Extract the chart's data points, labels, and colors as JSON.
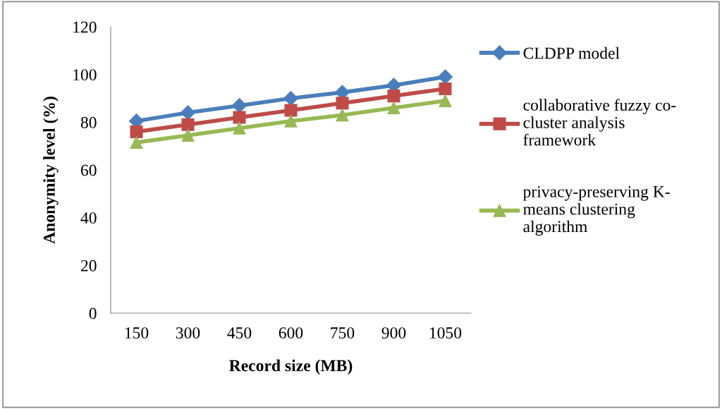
{
  "chart_data": {
    "type": "line",
    "xlabel": "Record size (MB)",
    "ylabel": "Anonymity level (%)",
    "categories": [
      "150",
      "300",
      "450",
      "600",
      "750",
      "900",
      "1050"
    ],
    "series": [
      {
        "name": "CLDPP model",
        "color": "#4a7ebb",
        "marker": "diamond",
        "values": [
          80.5,
          84,
          87,
          90,
          92.5,
          95.5,
          99
        ]
      },
      {
        "name": "collaborative fuzzy co-cluster analysis framework",
        "color": "#be4b48",
        "marker": "square",
        "values": [
          76,
          79,
          82,
          85,
          88,
          91,
          94
        ]
      },
      {
        "name": "privacy-preserving K-means clustering algorithm",
        "color": "#98b954",
        "marker": "triangle",
        "values": [
          71.5,
          74.5,
          77.5,
          80.5,
          83,
          86,
          89
        ]
      }
    ],
    "ylim": [
      0,
      120
    ],
    "yticks": [
      0,
      20,
      40,
      60,
      80,
      100,
      120
    ],
    "grid": false,
    "legend": "right",
    "line_style": "solid"
  }
}
